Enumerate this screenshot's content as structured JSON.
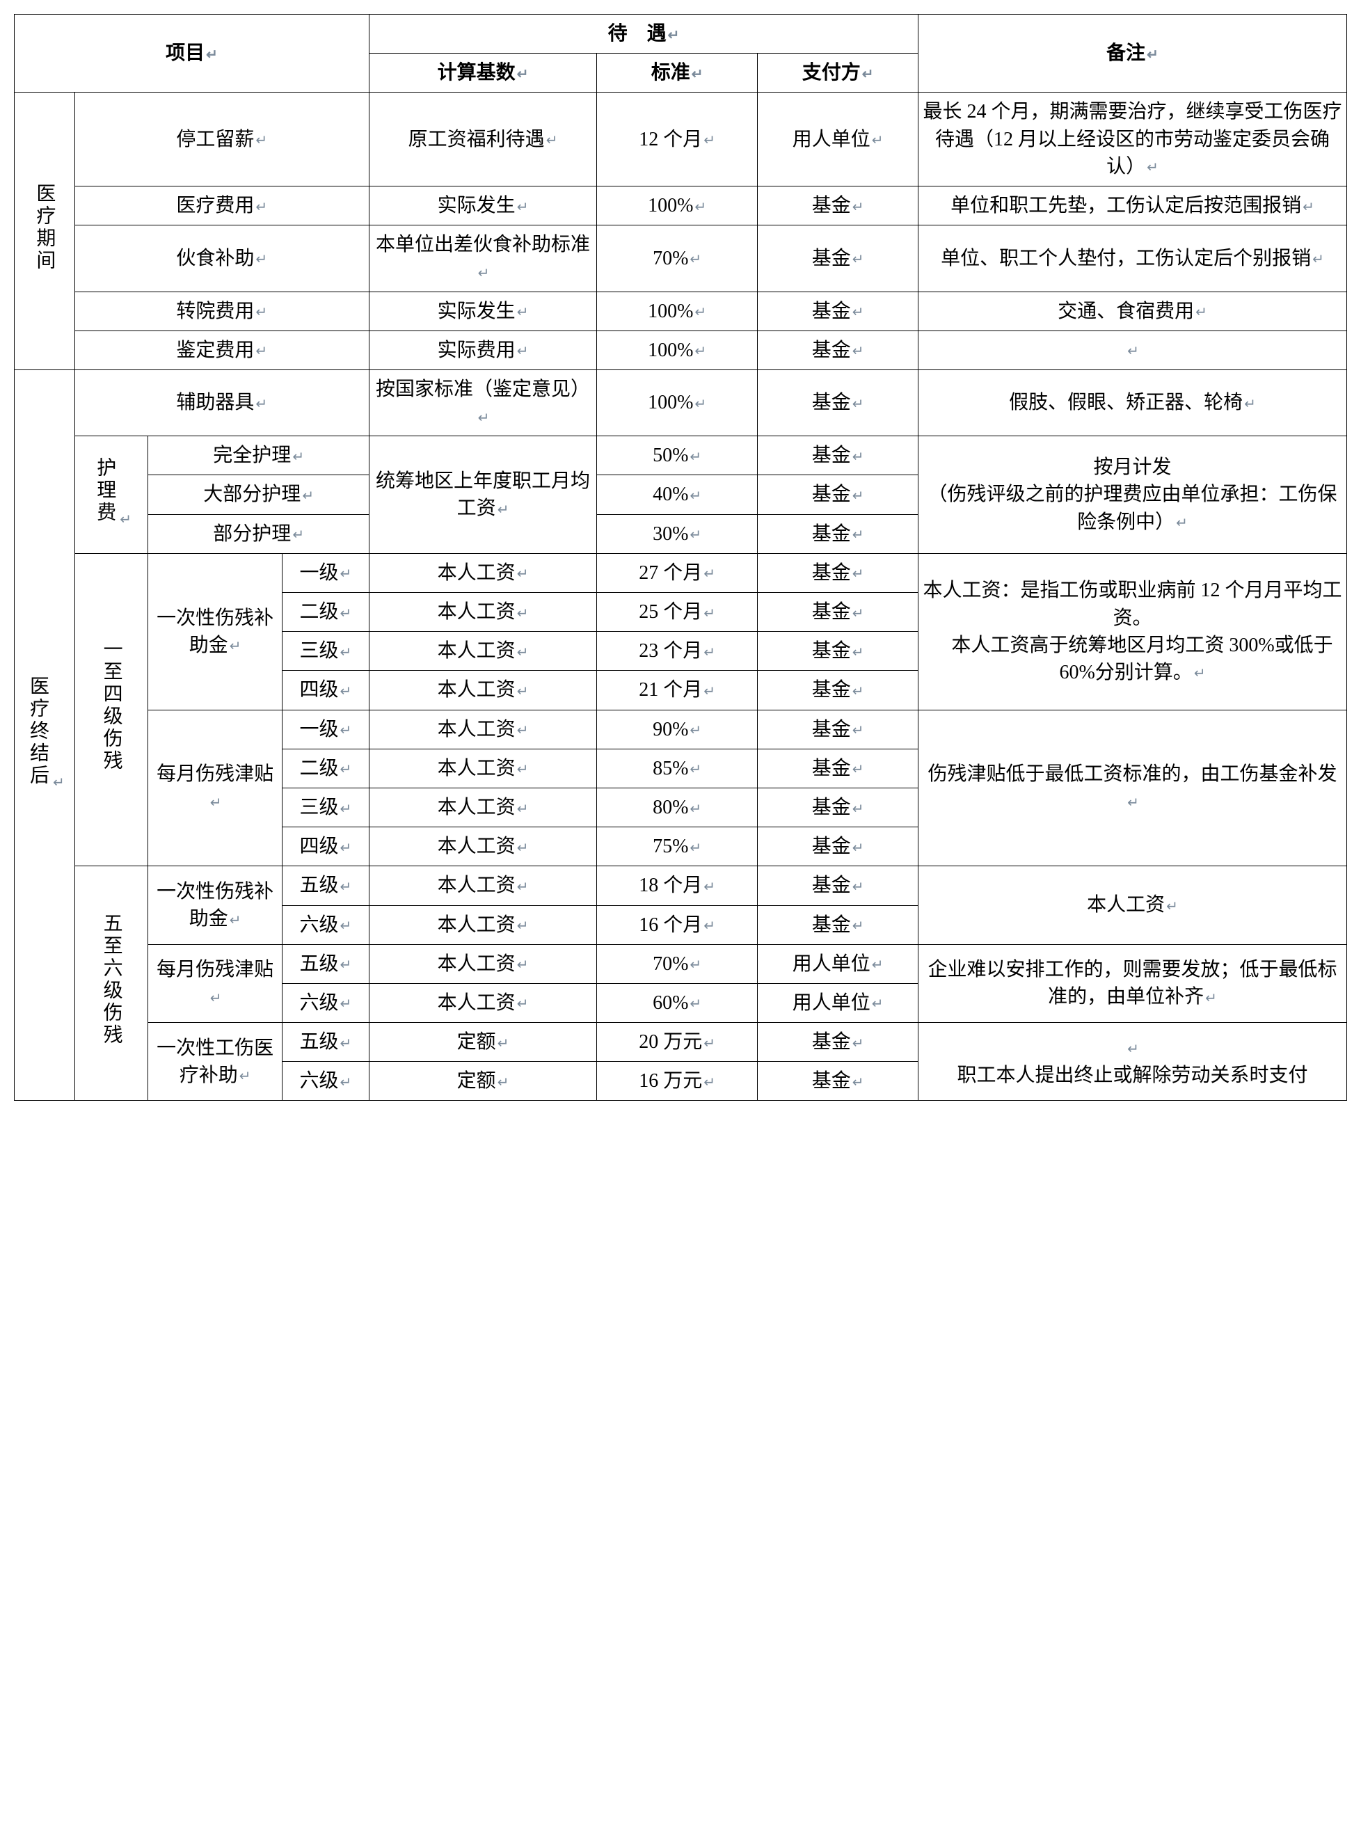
{
  "glyph": "↵",
  "colors": {
    "border": "#000000",
    "text": "#000000",
    "return_mark": "#7a8a9a",
    "background": "#ffffff"
  },
  "typography": {
    "body_fontsize_pt": 21,
    "header_weight": "bold",
    "font_family": "SimSun"
  },
  "columns": {
    "widths_pct": [
      4.5,
      5.5,
      10,
      6.5,
      17,
      12,
      12,
      32
    ]
  },
  "header": {
    "project": "项目",
    "treatment": "待　遇",
    "calc_base": "计算基数",
    "standard": "标准",
    "payer": "支付方",
    "remark": "备注"
  },
  "sections": {
    "s1": "医疗期间",
    "s2": "医疗终结后"
  },
  "rows": {
    "r1": {
      "name": "停工留薪",
      "base": "原工资福利待遇",
      "std": "12 个月",
      "payer": "用人单位",
      "note": "最长 24 个月，期满需要治疗，继续享受工伤医疗待遇（12 月以上经设区的市劳动鉴定委员会确认）"
    },
    "r2": {
      "name": "医疗费用",
      "base": "实际发生",
      "std": "100%",
      "payer": "基金",
      "note": "单位和职工先垫，工伤认定后按范围报销"
    },
    "r3": {
      "name": "伙食补助",
      "base": "本单位出差伙食补助标准",
      "std": "70%",
      "payer": "基金",
      "note": "单位、职工个人垫付，工伤认定后个别报销"
    },
    "r4": {
      "name": "转院费用",
      "base": "实际发生",
      "std": "100%",
      "payer": "基金",
      "note": "交通、食宿费用"
    },
    "r5": {
      "name": "鉴定费用",
      "base": "实际费用",
      "std": "100%",
      "payer": "基金",
      "note": ""
    },
    "r6": {
      "name": "辅助器具",
      "base": "按国家标准（鉴定意见）",
      "std": "100%",
      "payer": "基金",
      "note": "假肢、假眼、矫正器、轮椅"
    },
    "nursing_label": "护理费",
    "nursing_base": "统筹地区上年度职工月均工资",
    "nursing_note": "按月计发\n（伤残评级之前的护理费应由单位承担：工伤保险条例中）",
    "n1": {
      "name": "完全护理",
      "std": "50%",
      "payer": "基金"
    },
    "n2": {
      "name": "大部分护理",
      "std": "40%",
      "payer": "基金"
    },
    "n3": {
      "name": "部分护理",
      "std": "30%",
      "payer": "基金"
    },
    "g14_label": "一至四级伤残",
    "g14_sub1": "一次性伤残补助金",
    "g14_sub2": "每月伤残津贴",
    "g14_note1": "本人工资：是指工伤或职业病前 12 个月月平均工资。\n　本人工资高于统筹地区月均工资 300%或低于 60%分别计算。",
    "g14_note2": "伤残津贴低于最低工资标准的，由工伤基金补发",
    "a1": {
      "lvl": "一级",
      "base": "本人工资",
      "std": "27 个月",
      "payer": "基金"
    },
    "a2": {
      "lvl": "二级",
      "base": "本人工资",
      "std": "25 个月",
      "payer": "基金"
    },
    "a3": {
      "lvl": "三级",
      "base": "本人工资",
      "std": "23 个月",
      "payer": "基金"
    },
    "a4": {
      "lvl": "四级",
      "base": "本人工资",
      "std": "21 个月",
      "payer": "基金"
    },
    "b1": {
      "lvl": "一级",
      "base": "本人工资",
      "std": "90%",
      "payer": "基金"
    },
    "b2": {
      "lvl": "二级",
      "base": "本人工资",
      "std": "85%",
      "payer": "基金"
    },
    "b3": {
      "lvl": "三级",
      "base": "本人工资",
      "std": "80%",
      "payer": "基金"
    },
    "b4": {
      "lvl": "四级",
      "base": "本人工资",
      "std": "75%",
      "payer": "基金"
    },
    "g56_label": "五至六级伤残",
    "g56_sub1": "一次性伤残补助金",
    "g56_sub2": "每月伤残津贴",
    "g56_sub3": "一次性工伤医疗补助",
    "g56_note1": "本人工资",
    "g56_note2": "企业难以安排工作的，则需要发放；低于最低标准的，由单位补齐",
    "g56_note3": "\n职工本人提出终止或解除劳动关系时支付",
    "c1": {
      "lvl": "五级",
      "base": "本人工资",
      "std": "18 个月",
      "payer": "基金"
    },
    "c2": {
      "lvl": "六级",
      "base": "本人工资",
      "std": "16 个月",
      "payer": "基金"
    },
    "d1": {
      "lvl": "五级",
      "base": "本人工资",
      "std": "70%",
      "payer": "用人单位"
    },
    "d2": {
      "lvl": "六级",
      "base": "本人工资",
      "std": "60%",
      "payer": "用人单位"
    },
    "e1": {
      "lvl": "五级",
      "base": "定额",
      "std": "20 万元",
      "payer": "基金"
    },
    "e2": {
      "lvl": "六级",
      "base": "定额",
      "std": "16 万元",
      "payer": "基金"
    }
  }
}
